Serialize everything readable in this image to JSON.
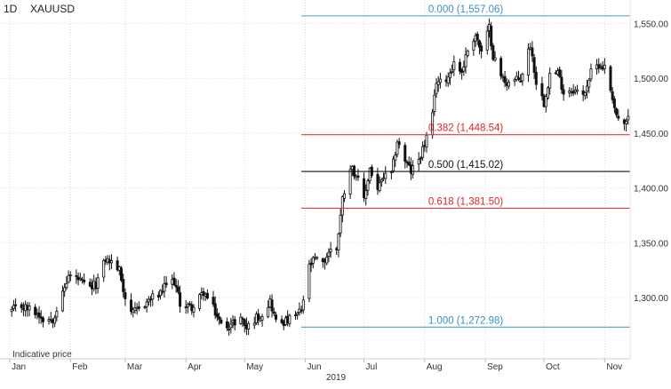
{
  "header": {
    "timeframe": "1D",
    "symbol": "XAUUSD"
  },
  "footnote": "Indicative price",
  "colors": {
    "candle": "#111111",
    "grid": "#dcdcdc",
    "fib_blue": "#5aa9d6",
    "fib_red": "#e0393e",
    "fib_black": "#111111",
    "label_blue": "#3d8fc4",
    "label_red": "#d9262b",
    "axis_text": "#333333"
  },
  "chart_data": {
    "type": "candlestick",
    "title": "",
    "symbol": "XAUUSD",
    "interval": "1D",
    "y_ticks": [
      "1,300.00",
      "1,350.00",
      "1,400.00",
      "1,450.00",
      "1,500.00",
      "1,550.00"
    ],
    "y_tick_values": [
      1300,
      1350,
      1400,
      1450,
      1500,
      1550
    ],
    "ylim": [
      1250,
      1580
    ],
    "x_ticks": [
      {
        "label": "Jan",
        "date": "2019-01-01"
      },
      {
        "label": "Feb",
        "date": "2019-02-01"
      },
      {
        "label": "Mar",
        "date": "2019-03-01"
      },
      {
        "label": "Apr",
        "date": "2019-04-01"
      },
      {
        "label": "May",
        "date": "2019-05-01"
      },
      {
        "label": "Jun",
        "date": "2019-06-01"
      },
      {
        "label": "Jul",
        "date": "2019-07-01"
      },
      {
        "label": "Aug",
        "date": "2019-08-01"
      },
      {
        "label": "Sep",
        "date": "2019-09-01"
      },
      {
        "label": "Oct",
        "date": "2019-10-01"
      },
      {
        "label": "Nov",
        "date": "2019-11-01"
      }
    ],
    "year_label": "2019",
    "xlim": [
      "2018-12-27",
      "2019-11-14"
    ],
    "grid": true,
    "fibonacci": {
      "start_date": "2019-05-30",
      "end_date": "2019-11-14",
      "levels": [
        {
          "ratio": "0.000",
          "price": 1557.06,
          "label": "0.000 (1,557.06)",
          "color": "blue"
        },
        {
          "ratio": "0.382",
          "price": 1448.54,
          "label": "0.382 (1,448.54)",
          "color": "red"
        },
        {
          "ratio": "0.500",
          "price": 1415.02,
          "label": "0.500 (1,415.02)",
          "color": "black"
        },
        {
          "ratio": "0.618",
          "price": 1381.5,
          "label": "0.618 (1,381.50)",
          "color": "red"
        },
        {
          "ratio": "1.000",
          "price": 1272.98,
          "label": "1.000 (1,272.98)",
          "color": "blue"
        }
      ]
    },
    "close_series": [
      [
        "2019-01-02",
        1288
      ],
      [
        "2019-01-07",
        1292
      ],
      [
        "2019-01-10",
        1290
      ],
      [
        "2019-01-15",
        1286
      ],
      [
        "2019-01-18",
        1281
      ],
      [
        "2019-01-23",
        1281
      ],
      [
        "2019-01-28",
        1303
      ],
      [
        "2019-01-31",
        1320
      ],
      [
        "2019-02-04",
        1318
      ],
      [
        "2019-02-07",
        1313
      ],
      [
        "2019-02-11",
        1308
      ],
      [
        "2019-02-14",
        1312
      ],
      [
        "2019-02-19",
        1335
      ],
      [
        "2019-02-22",
        1332
      ],
      [
        "2019-02-26",
        1325
      ],
      [
        "2019-03-01",
        1300
      ],
      [
        "2019-03-05",
        1285
      ],
      [
        "2019-03-08",
        1290
      ],
      [
        "2019-03-12",
        1296
      ],
      [
        "2019-03-15",
        1300
      ],
      [
        "2019-03-19",
        1303
      ],
      [
        "2019-03-22",
        1312
      ],
      [
        "2019-03-26",
        1315
      ],
      [
        "2019-03-29",
        1295
      ],
      [
        "2019-04-02",
        1292
      ],
      [
        "2019-04-05",
        1291
      ],
      [
        "2019-04-10",
        1305
      ],
      [
        "2019-04-15",
        1290
      ],
      [
        "2019-04-19",
        1275
      ],
      [
        "2019-04-24",
        1275
      ],
      [
        "2019-04-29",
        1282
      ],
      [
        "2019-05-02",
        1272
      ],
      [
        "2019-05-07",
        1282
      ],
      [
        "2019-05-10",
        1285
      ],
      [
        "2019-05-14",
        1297
      ],
      [
        "2019-05-17",
        1278
      ],
      [
        "2019-05-22",
        1278
      ],
      [
        "2019-05-27",
        1283
      ],
      [
        "2019-05-30",
        1288
      ],
      [
        "2019-06-03",
        1328
      ],
      [
        "2019-06-06",
        1335
      ],
      [
        "2019-06-10",
        1330
      ],
      [
        "2019-06-13",
        1342
      ],
      [
        "2019-06-17",
        1345
      ],
      [
        "2019-06-20",
        1390
      ],
      [
        "2019-06-24",
        1420
      ],
      [
        "2019-06-27",
        1412
      ],
      [
        "2019-07-01",
        1388
      ],
      [
        "2019-07-04",
        1418
      ],
      [
        "2019-07-08",
        1398
      ],
      [
        "2019-07-11",
        1410
      ],
      [
        "2019-07-15",
        1412
      ],
      [
        "2019-07-18",
        1443
      ],
      [
        "2019-07-22",
        1425
      ],
      [
        "2019-07-25",
        1415
      ],
      [
        "2019-07-29",
        1426
      ],
      [
        "2019-08-01",
        1440
      ],
      [
        "2019-08-05",
        1465
      ],
      [
        "2019-08-07",
        1498
      ],
      [
        "2019-08-09",
        1496
      ],
      [
        "2019-08-13",
        1502
      ],
      [
        "2019-08-16",
        1514
      ],
      [
        "2019-08-20",
        1506
      ],
      [
        "2019-08-23",
        1526
      ],
      [
        "2019-08-27",
        1540
      ],
      [
        "2019-08-30",
        1523
      ],
      [
        "2019-09-03",
        1546
      ],
      [
        "2019-09-05",
        1521
      ],
      [
        "2019-09-09",
        1502
      ],
      [
        "2019-09-12",
        1496
      ],
      [
        "2019-09-16",
        1498
      ],
      [
        "2019-09-19",
        1499
      ],
      [
        "2019-09-24",
        1531
      ],
      [
        "2019-09-27",
        1497
      ],
      [
        "2019-10-01",
        1478
      ],
      [
        "2019-10-04",
        1504
      ],
      [
        "2019-10-08",
        1505
      ],
      [
        "2019-10-11",
        1488
      ],
      [
        "2019-10-16",
        1490
      ],
      [
        "2019-10-21",
        1484
      ],
      [
        "2019-10-25",
        1505
      ],
      [
        "2019-10-29",
        1513
      ],
      [
        "2019-11-01",
        1510
      ],
      [
        "2019-11-05",
        1483
      ],
      [
        "2019-11-07",
        1466
      ],
      [
        "2019-11-11",
        1456
      ],
      [
        "2019-11-13",
        1463
      ]
    ]
  }
}
